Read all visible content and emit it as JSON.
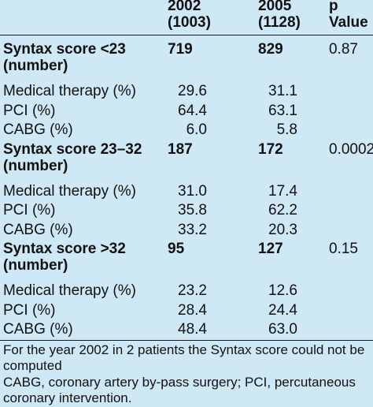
{
  "header": {
    "col_2002": [
      "2002",
      "(1003)"
    ],
    "col_2005": [
      "2005",
      "(1128)"
    ],
    "col_p": [
      "p",
      "Value"
    ]
  },
  "groups": [
    {
      "label": [
        "Syntax score <23",
        "(number)"
      ],
      "n2002": "719",
      "n2005": "829",
      "p": "0.87",
      "rows": [
        {
          "label": "Medical therapy (%)",
          "v2002": "29.6",
          "v2005": "31.1"
        },
        {
          "label": "PCI (%)",
          "v2002": "64.4",
          "v2005": "63.1"
        },
        {
          "label": "CABG (%)",
          "v2002": "6.0",
          "v2005": "5.8"
        }
      ]
    },
    {
      "label": [
        "Syntax score 23–32",
        "(number)"
      ],
      "n2002": "187",
      "n2005": "172",
      "p": "0.0002",
      "rows": [
        {
          "label": "Medical therapy (%)",
          "v2002": "31.0",
          "v2005": "17.4"
        },
        {
          "label": "PCI (%)",
          "v2002": "35.8",
          "v2005": "62.2"
        },
        {
          "label": "CABG (%)",
          "v2002": "33.2",
          "v2005": "20.3"
        }
      ]
    },
    {
      "label": [
        "Syntax score >32",
        "(number)"
      ],
      "n2002": "95",
      "n2005": "127",
      "p": "0.15",
      "rows": [
        {
          "label": "Medical therapy (%)",
          "v2002": "23.2",
          "v2005": "12.6"
        },
        {
          "label": "PCI (%)",
          "v2002": "28.4",
          "v2005": "24.4"
        },
        {
          "label": "CABG (%)",
          "v2002": "48.4",
          "v2005": "63.0"
        }
      ]
    }
  ],
  "footnotes": [
    [
      "For the year 2002 in 2 patients the Syntax score could not be",
      "computed"
    ],
    [
      "CABG, coronary artery by-pass surgery; PCI, percutaneous",
      "coronary intervention."
    ]
  ]
}
